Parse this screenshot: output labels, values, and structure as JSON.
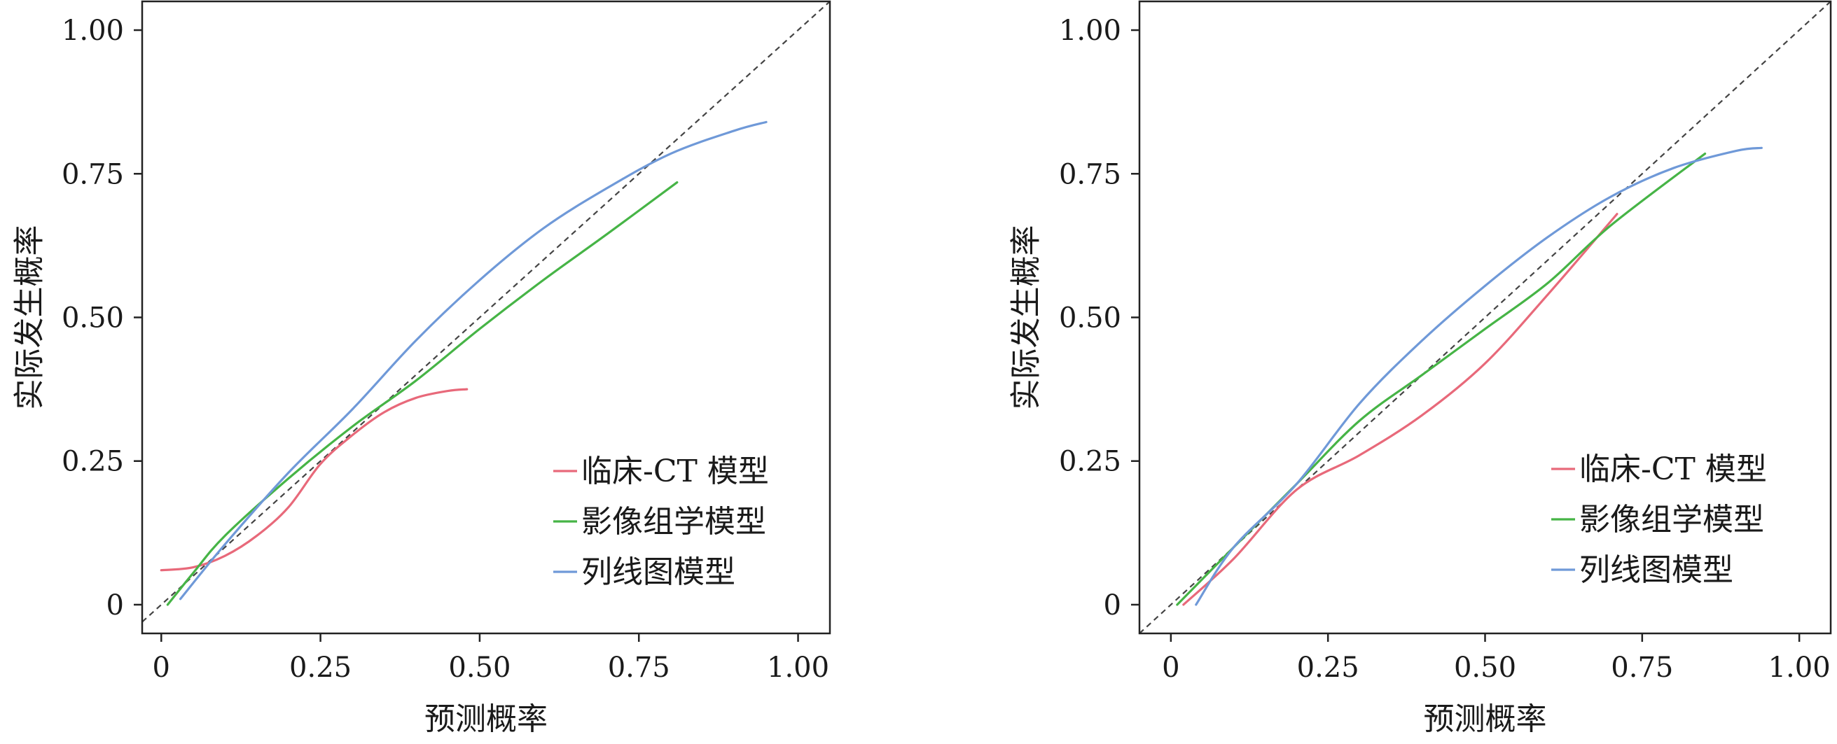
{
  "chart_data": [
    {
      "type": "line",
      "xlabel": "预测概率",
      "ylabel": "实际发生概率",
      "xlim": [
        -0.03,
        1.05
      ],
      "ylim": [
        -0.05,
        1.05
      ],
      "x_ticks": [
        0,
        0.25,
        0.5,
        0.75,
        1.0
      ],
      "x_tick_labels": [
        "0",
        "0.25",
        "0.50",
        "0.75",
        "1.00"
      ],
      "y_ticks": [
        0,
        0.25,
        0.5,
        0.75,
        1.0
      ],
      "y_tick_labels": [
        "0",
        "0.25",
        "0.50",
        "0.75",
        "1.00"
      ],
      "reference_line": "diagonal-dashed",
      "grid": false,
      "legend_position": "bottom-right",
      "series": [
        {
          "name": "临床-CT 模型",
          "color": "#e8697a",
          "points": [
            [
              0.0,
              0.06
            ],
            [
              0.05,
              0.065
            ],
            [
              0.1,
              0.085
            ],
            [
              0.15,
              0.12
            ],
            [
              0.2,
              0.17
            ],
            [
              0.25,
              0.245
            ],
            [
              0.3,
              0.295
            ],
            [
              0.35,
              0.335
            ],
            [
              0.4,
              0.36
            ],
            [
              0.45,
              0.372
            ],
            [
              0.48,
              0.375
            ]
          ]
        },
        {
          "name": "影像组学模型",
          "color": "#46b446",
          "points": [
            [
              0.01,
              0.0
            ],
            [
              0.05,
              0.055
            ],
            [
              0.1,
              0.12
            ],
            [
              0.2,
              0.22
            ],
            [
              0.3,
              0.31
            ],
            [
              0.4,
              0.39
            ],
            [
              0.5,
              0.48
            ],
            [
              0.6,
              0.565
            ],
            [
              0.7,
              0.645
            ],
            [
              0.81,
              0.735
            ]
          ]
        },
        {
          "name": "列线图模型",
          "color": "#6f99d8",
          "points": [
            [
              0.03,
              0.01
            ],
            [
              0.1,
              0.105
            ],
            [
              0.2,
              0.23
            ],
            [
              0.3,
              0.34
            ],
            [
              0.4,
              0.46
            ],
            [
              0.5,
              0.565
            ],
            [
              0.6,
              0.655
            ],
            [
              0.7,
              0.725
            ],
            [
              0.8,
              0.785
            ],
            [
              0.9,
              0.825
            ],
            [
              0.95,
              0.84
            ]
          ]
        }
      ]
    },
    {
      "type": "line",
      "xlabel": "预测概率",
      "ylabel": "实际发生概率",
      "xlim": [
        -0.05,
        1.05
      ],
      "ylim": [
        -0.05,
        1.05
      ],
      "x_ticks": [
        0,
        0.25,
        0.5,
        0.75,
        1.0
      ],
      "x_tick_labels": [
        "0",
        "0.25",
        "0.50",
        "0.75",
        "1.00"
      ],
      "y_ticks": [
        0,
        0.25,
        0.5,
        0.75,
        1.0
      ],
      "y_tick_labels": [
        "0",
        "0.25",
        "0.50",
        "0.75",
        "1.00"
      ],
      "reference_line": "diagonal-dashed",
      "grid": false,
      "legend_position": "bottom-right",
      "series": [
        {
          "name": "临床-CT 模型",
          "color": "#e8697a",
          "points": [
            [
              0.02,
              0.0
            ],
            [
              0.1,
              0.08
            ],
            [
              0.2,
              0.2
            ],
            [
              0.3,
              0.26
            ],
            [
              0.4,
              0.33
            ],
            [
              0.5,
              0.42
            ],
            [
              0.6,
              0.54
            ],
            [
              0.71,
              0.68
            ]
          ]
        },
        {
          "name": "影像组学模型",
          "color": "#46b446",
          "points": [
            [
              0.01,
              0.0
            ],
            [
              0.1,
              0.1
            ],
            [
              0.2,
              0.21
            ],
            [
              0.3,
              0.32
            ],
            [
              0.4,
              0.4
            ],
            [
              0.5,
              0.48
            ],
            [
              0.6,
              0.56
            ],
            [
              0.7,
              0.66
            ],
            [
              0.85,
              0.785
            ]
          ]
        },
        {
          "name": "列线图模型",
          "color": "#6f99d8",
          "points": [
            [
              0.04,
              0.0
            ],
            [
              0.1,
              0.1
            ],
            [
              0.2,
              0.21
            ],
            [
              0.3,
              0.35
            ],
            [
              0.4,
              0.46
            ],
            [
              0.5,
              0.555
            ],
            [
              0.6,
              0.64
            ],
            [
              0.7,
              0.71
            ],
            [
              0.8,
              0.76
            ],
            [
              0.9,
              0.79
            ],
            [
              0.94,
              0.795
            ]
          ]
        }
      ]
    }
  ]
}
